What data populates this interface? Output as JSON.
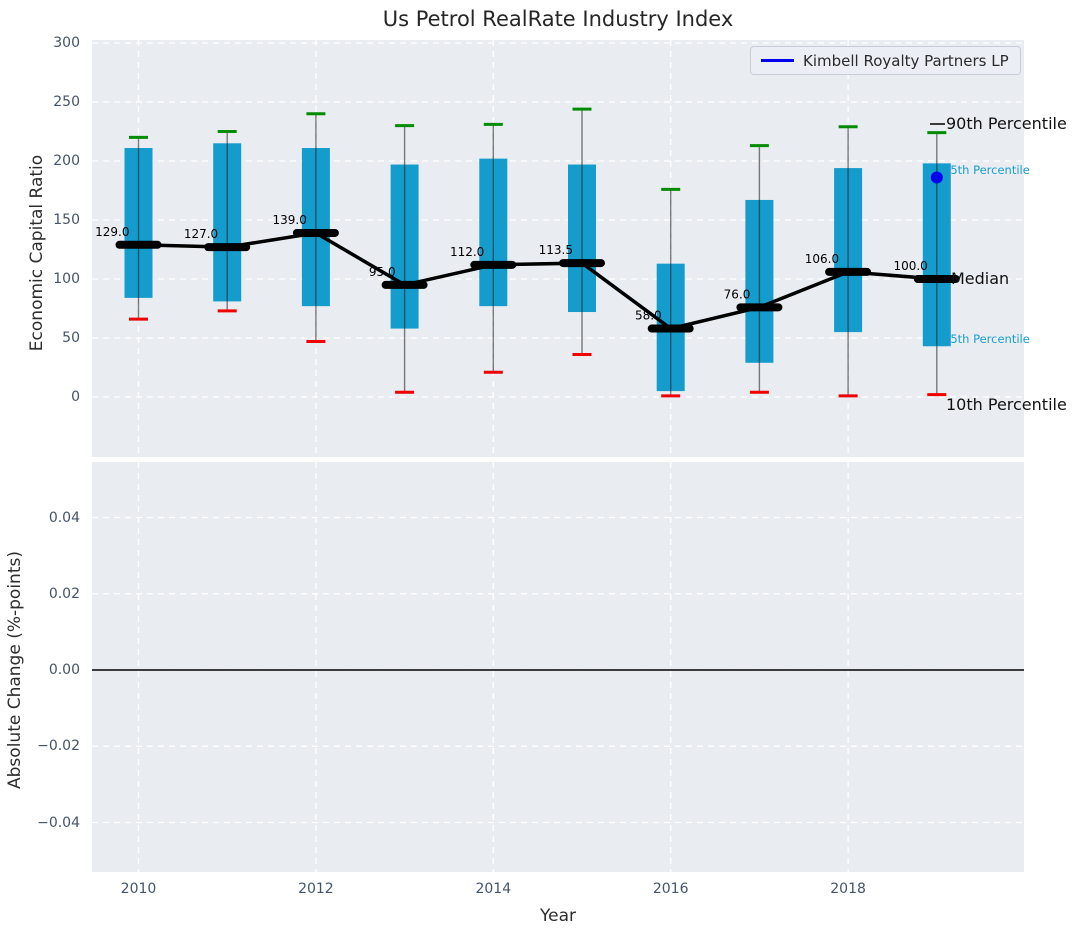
{
  "title": "Us Petrol RealRate Industry Index",
  "legend": {
    "label": "Kimbell Royalty Partners LP",
    "line_color": "#0000ee"
  },
  "axes": {
    "top": {
      "ylabel": "Economic Capital Ratio",
      "yticks": [
        300,
        250,
        200,
        150,
        100,
        50,
        0
      ]
    },
    "bottom": {
      "ylabel": "Absolute Change (%-points)",
      "ytick_labels": [
        "0.04",
        "0.02",
        "0.00",
        "−0.02",
        "−0.04"
      ],
      "ytick_values": [
        0.04,
        0.02,
        0.0,
        -0.02,
        -0.04
      ]
    },
    "x": {
      "label": "Year",
      "ticks": [
        2010,
        2012,
        2014,
        2016,
        2018
      ]
    }
  },
  "annotations": [
    {
      "label": "90th Percentile",
      "tier": "black",
      "leader": true
    },
    {
      "label": "75th Percentile",
      "tier": "blue"
    },
    {
      "label": "Median",
      "tier": "black"
    },
    {
      "label": "25th Percentile",
      "tier": "blue"
    },
    {
      "label": "10th Percentile",
      "tier": "black"
    }
  ],
  "colors": {
    "box_fill": "#149ccd",
    "annotation_blue": "#1b9ccd",
    "cap_high": "#028c02",
    "cap_low": "#f00000",
    "median": "#000000",
    "company_point": "#0000ee",
    "panel_bg": "#e9edf1",
    "grid": "#ffffff",
    "tick_text": "#44546a"
  },
  "chart_data": [
    {
      "type": "boxplot",
      "title": "Us Petrol RealRate Industry Index",
      "xlabel": "Year",
      "ylabel": "Economic Capital Ratio",
      "ylim": [
        -51,
        303
      ],
      "yticks": [
        0,
        50,
        100,
        150,
        200,
        250,
        300
      ],
      "xticks": [
        2010,
        2012,
        2014,
        2016,
        2018
      ],
      "grid": true,
      "legend_position": "upper right",
      "categories": [
        2010,
        2011,
        2012,
        2013,
        2014,
        2015,
        2016,
        2017,
        2018,
        2019
      ],
      "series": [
        {
          "name": "90th Percentile",
          "values": [
            220,
            225,
            240,
            230,
            231,
            244,
            176,
            213,
            229,
            224
          ]
        },
        {
          "name": "75th Percentile",
          "values": [
            211,
            215,
            211,
            197,
            202,
            197,
            113,
            167,
            194,
            198
          ]
        },
        {
          "name": "Median",
          "values": [
            129,
            127,
            139,
            95,
            112,
            113.5,
            58,
            76,
            106,
            100
          ]
        },
        {
          "name": "25th Percentile",
          "values": [
            84,
            81,
            77,
            58,
            77,
            72,
            5,
            29,
            55,
            43
          ]
        },
        {
          "name": "10th Percentile",
          "values": [
            66,
            73,
            47,
            4,
            21,
            36,
            1,
            4,
            1,
            2
          ]
        }
      ],
      "median_labels": [
        "129.0",
        "127.0",
        "139.0",
        "95.0",
        "112.0",
        "113.5",
        "58.0",
        "76.0",
        "106.0",
        "100.0"
      ],
      "point": {
        "name": "Kimbell Royalty Partners LP",
        "x": 2019,
        "y": 186,
        "color": "#0000ee"
      }
    },
    {
      "type": "line",
      "xlabel": "Year",
      "ylabel": "Absolute Change (%-points)",
      "ylim": [
        -0.053,
        0.055
      ],
      "yticks": [
        0.04,
        0.02,
        0.0,
        -0.02,
        -0.04
      ],
      "grid": true,
      "series": [],
      "zero_line_y": 0.0
    }
  ]
}
